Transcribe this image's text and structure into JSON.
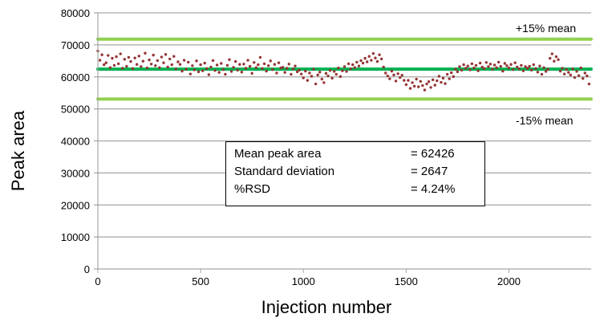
{
  "chart_data": {
    "type": "scatter",
    "xlabel": "Injection number",
    "ylabel": "Peak area",
    "xlim": [
      0,
      2400
    ],
    "ylim": [
      0,
      80000
    ],
    "x_ticks": [
      0,
      500,
      1000,
      1500,
      2000
    ],
    "y_ticks": [
      0,
      10000,
      20000,
      30000,
      40000,
      50000,
      60000,
      70000,
      80000
    ],
    "grid": "horizontal",
    "colors": {
      "points": "#943634",
      "mean_line": "#00b050",
      "limit_lines": "#92d050",
      "grid": "#a6a6a6"
    },
    "x_step": 10,
    "values": [
      68100,
      65200,
      66900,
      63800,
      64400,
      66700,
      62900,
      65800,
      63600,
      66300,
      64100,
      67200,
      62700,
      65500,
      63300,
      66100,
      64800,
      62600,
      65900,
      63900,
      66500,
      63200,
      64900,
      67400,
      62800,
      65300,
      64000,
      66800,
      63500,
      65100,
      62900,
      66200,
      64400,
      67000,
      63100,
      65600,
      63800,
      66400,
      62500,
      64700,
      63900,
      61800,
      65200,
      62400,
      64600,
      60900,
      63500,
      62200,
      65000,
      61600,
      63800,
      61900,
      64300,
      62600,
      60700,
      63100,
      65100,
      62000,
      63700,
      61400,
      64200,
      62300,
      60800,
      63600,
      65400,
      61700,
      63000,
      64800,
      62100,
      63900,
      61500,
      64000,
      62700,
      65200,
      63300,
      61100,
      64500,
      62900,
      63800,
      66100,
      62600,
      64100,
      61800,
      63500,
      65000,
      62300,
      63900,
      61200,
      64400,
      62800,
      63000,
      61400,
      62700,
      64000,
      60800,
      62500,
      63400,
      61600,
      62100,
      60900,
      59700,
      61800,
      58900,
      61200,
      60200,
      62400,
      57800,
      60600,
      61500,
      59300,
      58200,
      61100,
      60300,
      62000,
      59600,
      61700,
      60800,
      62800,
      60100,
      61900,
      63200,
      61700,
      64100,
      62500,
      63800,
      62900,
      64600,
      63400,
      65100,
      64300,
      65800,
      64700,
      66400,
      65200,
      67300,
      65900,
      64800,
      66900,
      65600,
      63100,
      61200,
      60300,
      59400,
      61800,
      60600,
      58700,
      61000,
      59800,
      60500,
      58900,
      57600,
      58900,
      56400,
      58200,
      57100,
      59300,
      56900,
      58600,
      57300,
      55900,
      57800,
      58500,
      56700,
      59100,
      57400,
      58800,
      60200,
      58300,
      59600,
      57900,
      60800,
      59400,
      61300,
      60100,
      62400,
      61600,
      63200,
      62100,
      63800,
      62700,
      63400,
      62200,
      64100,
      62800,
      63600,
      61900,
      64300,
      63100,
      62600,
      64500,
      63200,
      64000,
      62400,
      63700,
      62900,
      64600,
      63300,
      61800,
      64200,
      63500,
      62800,
      63900,
      62300,
      64400,
      63100,
      62500,
      63600,
      61900,
      63200,
      62700,
      63300,
      62100,
      63800,
      62600,
      61500,
      63400,
      60800,
      62900,
      61700,
      62400,
      65800,
      67200,
      64900,
      66300,
      65400,
      61800,
      62700,
      60900,
      62300,
      61400,
      60600,
      62500,
      59800,
      61700,
      60400,
      62800,
      59500,
      61200,
      60300,
      57800
    ],
    "reference_lines": [
      {
        "label": "+15% mean",
        "value": 71790
      },
      {
        "label": "",
        "value": 62426
      },
      {
        "label": "-15% mean",
        "value": 53062
      }
    ],
    "stats_box": [
      {
        "label": "Mean peak area",
        "value": "= 62426"
      },
      {
        "label": "Standard deviation",
        "value": "= 2647"
      },
      {
        "label": "%RSD",
        "value": "= 4.24%"
      }
    ]
  }
}
